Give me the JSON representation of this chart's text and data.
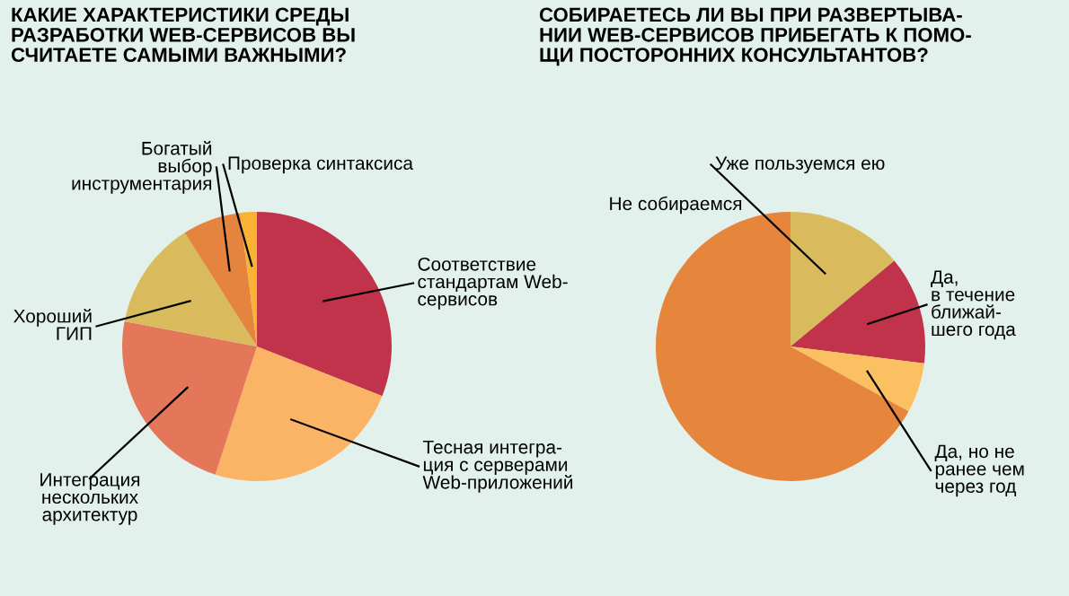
{
  "chart_data": [
    {
      "type": "pie",
      "title": "КАКИЕ ХАРАКТЕРИСТИКИ СРЕДЫ\nРАЗРАБОТКИ WEB-СЕРВИСОВ ВЫ\nСЧИТАЕТЕ САМЫМИ ВАЖНЫМИ?",
      "categories": [
        "Соответствие\nстандартам Web-\nсервисов",
        "Тесная интегра-\nция с серверами\nWeb-приложений",
        "Интеграция\nнескольких\nархитектур",
        "Хороший\nГИП",
        "Богатый\nвыбор\nинструментария",
        "Проверка синтаксиса"
      ],
      "values": [
        31,
        24,
        23,
        13,
        7,
        2
      ],
      "colors": [
        "#c0334a",
        "#fbb366",
        "#e4775a",
        "#d9bb5e",
        "#e5843f",
        "#f9b233"
      ]
    },
    {
      "type": "pie",
      "title": "СОБИРАЕТЕСЬ ЛИ ВЫ ПРИ РАЗВЕРТЫВА-\nНИИ WEB-СЕРВИСОВ ПРИБЕГАТЬ К ПОМО-\nЩИ ПОСТОРОННИХ КОНСУЛЬТАНТОВ?",
      "categories": [
        "Уже пользуемся ею",
        "Да,\nв течение\nближай-\nшего года",
        "Да, но не\nранее чем\nчерез год",
        "Не собираемся"
      ],
      "values": [
        14,
        13,
        6,
        67
      ],
      "colors": [
        "#d9bb5e",
        "#c0334a",
        "#fbc062",
        "#e6853c"
      ]
    }
  ]
}
